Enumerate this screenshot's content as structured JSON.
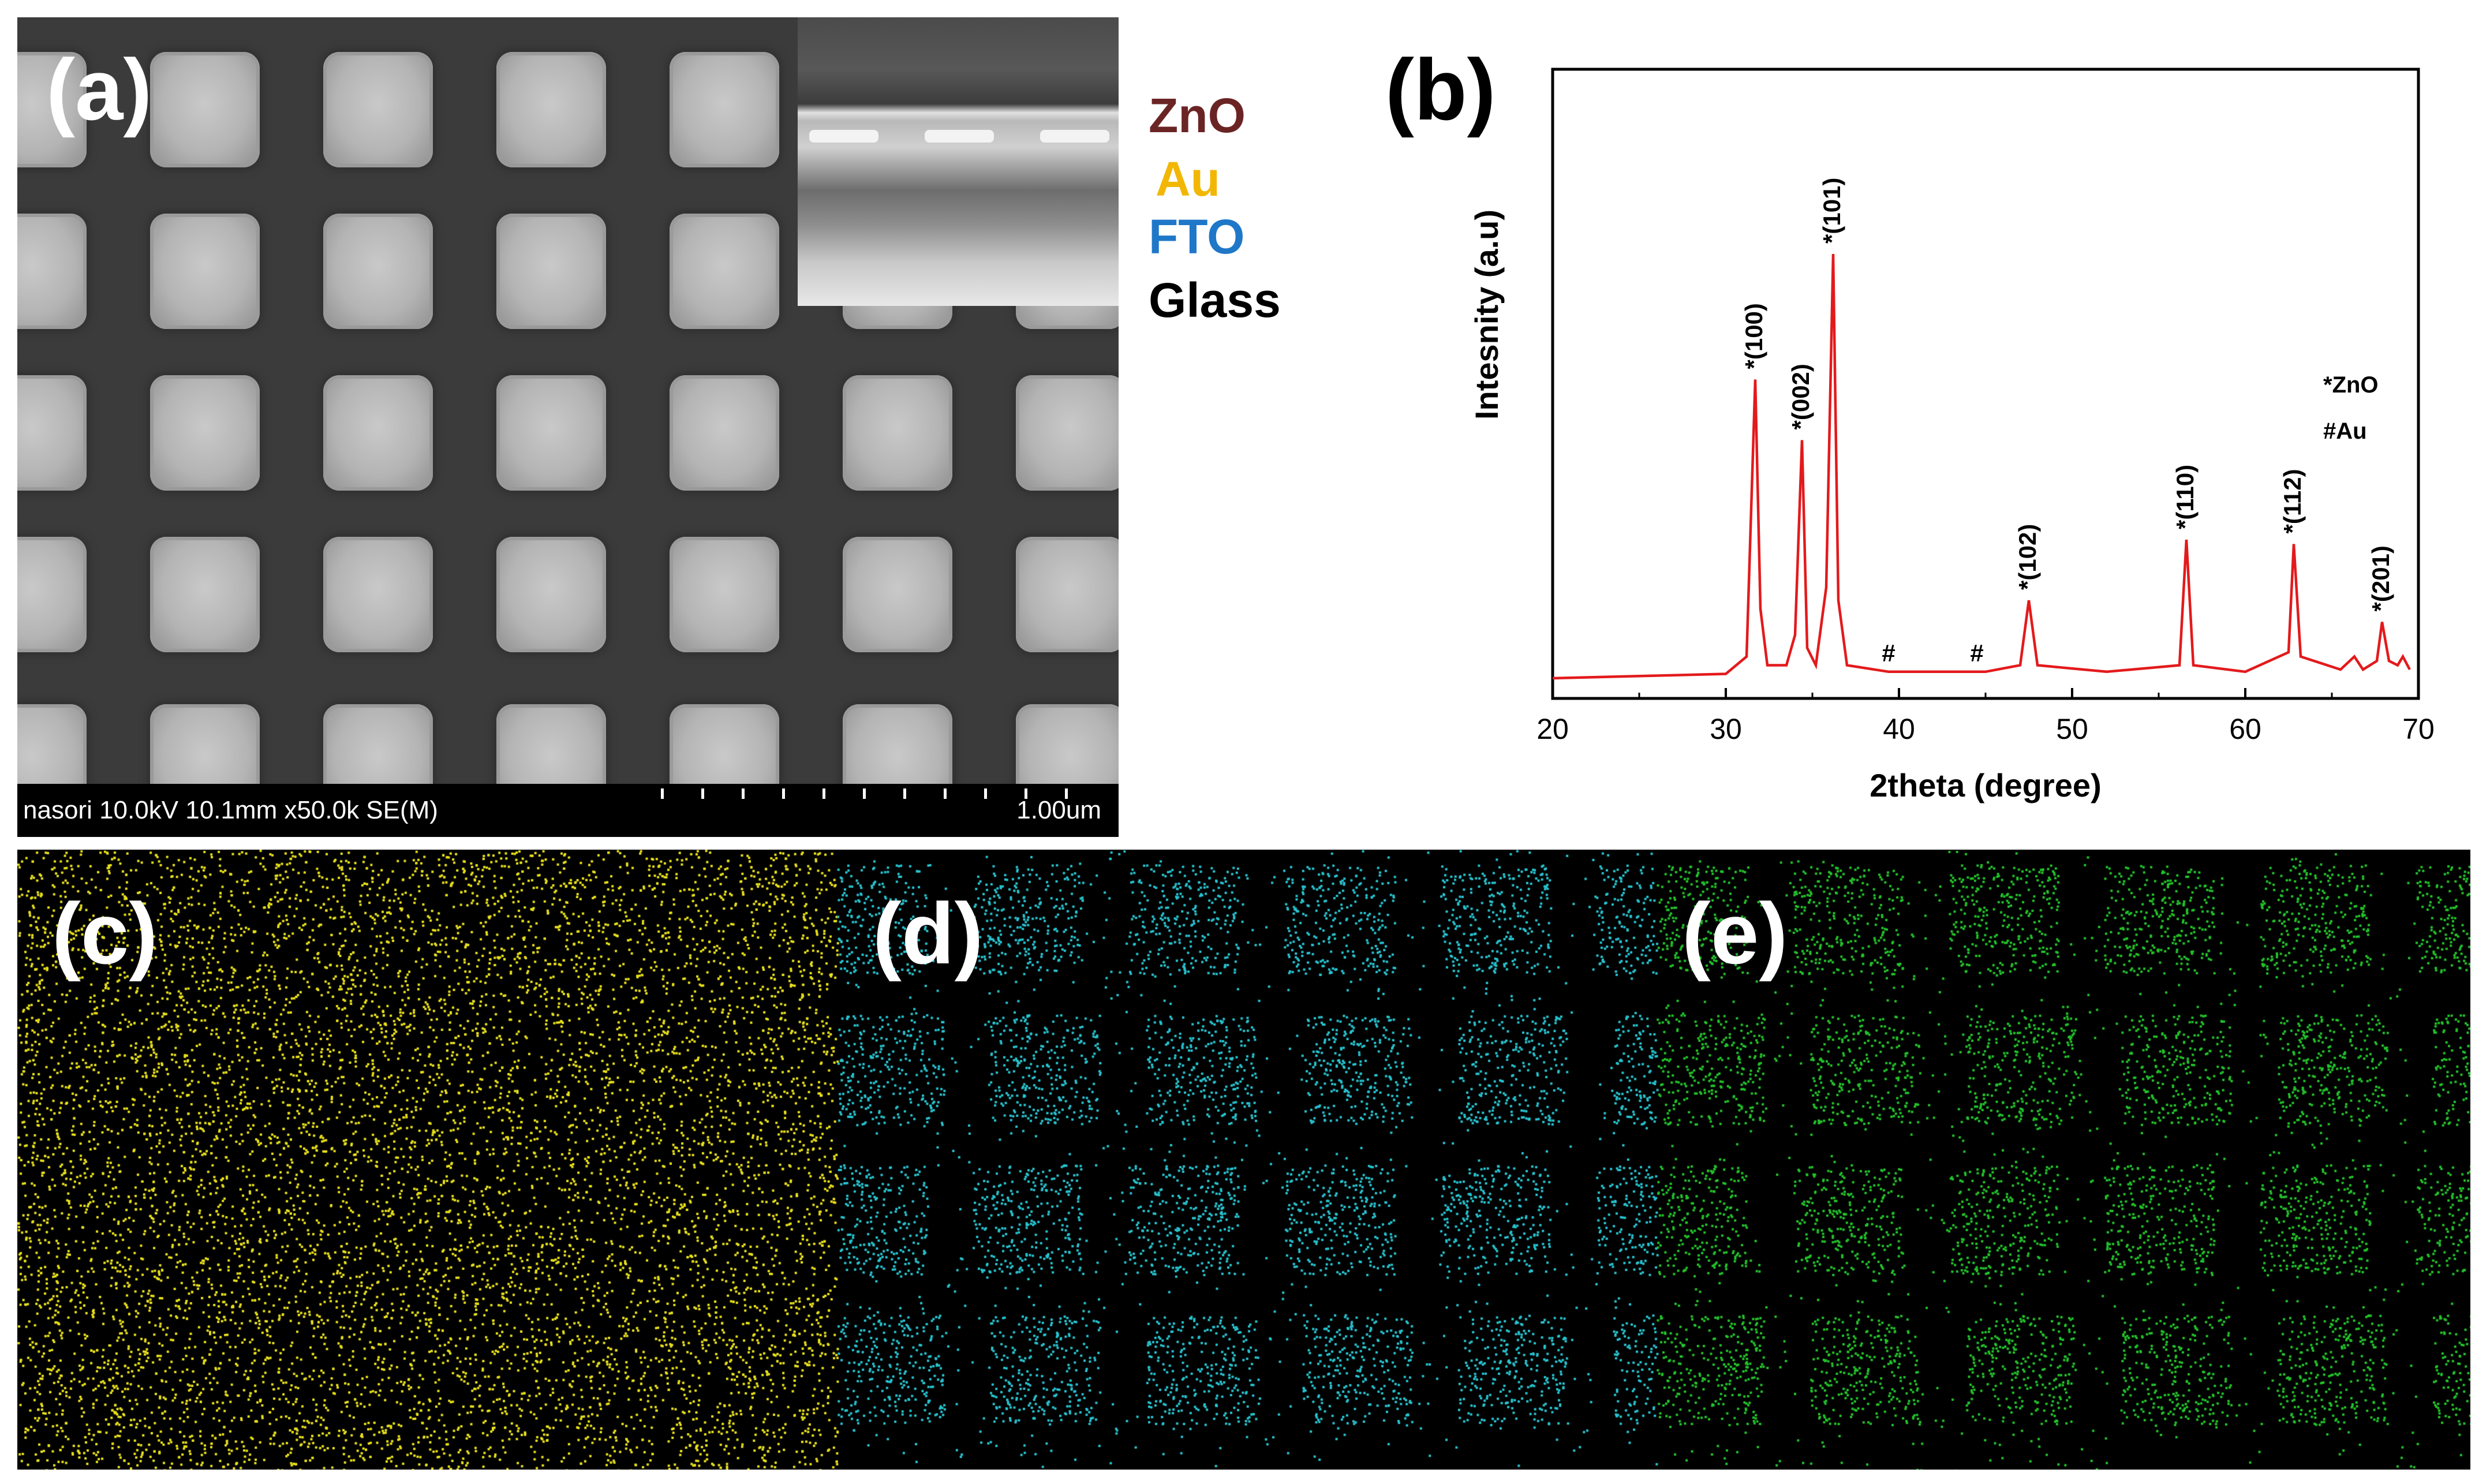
{
  "panel_a": {
    "label": "(a)",
    "sem_info": "nasori 10.0kV 10.1mm x50.0k SE(M)",
    "scale_label": "1.00um",
    "legend": [
      {
        "text": "ZnO",
        "color": "#6b2424"
      },
      {
        "text": "Au",
        "color": "#f2b705"
      },
      {
        "text": "FTO",
        "color": "#1f77c8"
      },
      {
        "text": "Glass",
        "color": "#000000"
      }
    ]
  },
  "panel_b": {
    "label": "(b)"
  },
  "chart_data": {
    "type": "line",
    "xlabel": "2theta (degree)",
    "ylabel": "Intesnity (a.u)",
    "xlim": [
      20,
      70
    ],
    "xticks": [
      20,
      30,
      40,
      50,
      60,
      70
    ],
    "grid": false,
    "line_color": "#e31a1c",
    "series": [
      {
        "x": [
          20,
          25,
          30,
          31.2,
          31.7,
          32.0,
          32.4,
          33.5,
          34.0,
          34.4,
          34.7,
          35.2,
          35.8,
          36.2,
          36.5,
          37.0,
          39.4,
          40,
          44.5,
          45,
          47.0,
          47.5,
          48.0,
          52,
          56.2,
          56.6,
          57.0,
          60,
          62.5,
          62.8,
          63.2,
          65.5,
          66.3,
          66.8,
          67.6,
          67.9,
          68.3,
          68.8,
          69.1,
          69.5
        ],
        "y": [
          0.02,
          0.025,
          0.03,
          0.07,
          0.71,
          0.18,
          0.05,
          0.05,
          0.12,
          0.57,
          0.09,
          0.05,
          0.23,
          1.0,
          0.2,
          0.05,
          0.035,
          0.035,
          0.035,
          0.035,
          0.05,
          0.2,
          0.05,
          0.035,
          0.05,
          0.34,
          0.05,
          0.035,
          0.08,
          0.33,
          0.07,
          0.04,
          0.07,
          0.04,
          0.06,
          0.15,
          0.06,
          0.05,
          0.07,
          0.04
        ]
      }
    ],
    "annotations": [
      {
        "x": 31.7,
        "text": "*(100)"
      },
      {
        "x": 34.4,
        "text": "*(002)"
      },
      {
        "x": 36.2,
        "text": "*(101)"
      },
      {
        "x": 47.5,
        "text": "*(102)"
      },
      {
        "x": 56.6,
        "text": "*(110)"
      },
      {
        "x": 62.8,
        "text": "*(112)"
      },
      {
        "x": 67.9,
        "text": "*(201)"
      }
    ],
    "markers": [
      {
        "x": 39.4,
        "text": "#"
      },
      {
        "x": 44.5,
        "text": "#"
      }
    ],
    "legend_notes": [
      "*ZnO",
      "#Au"
    ]
  },
  "eds": {
    "panels": [
      {
        "label": "(c)",
        "color": "#e8e01a"
      },
      {
        "label": "(d)",
        "color": "#27c3cf"
      },
      {
        "label": "(e)",
        "color": "#22c22a"
      }
    ]
  }
}
